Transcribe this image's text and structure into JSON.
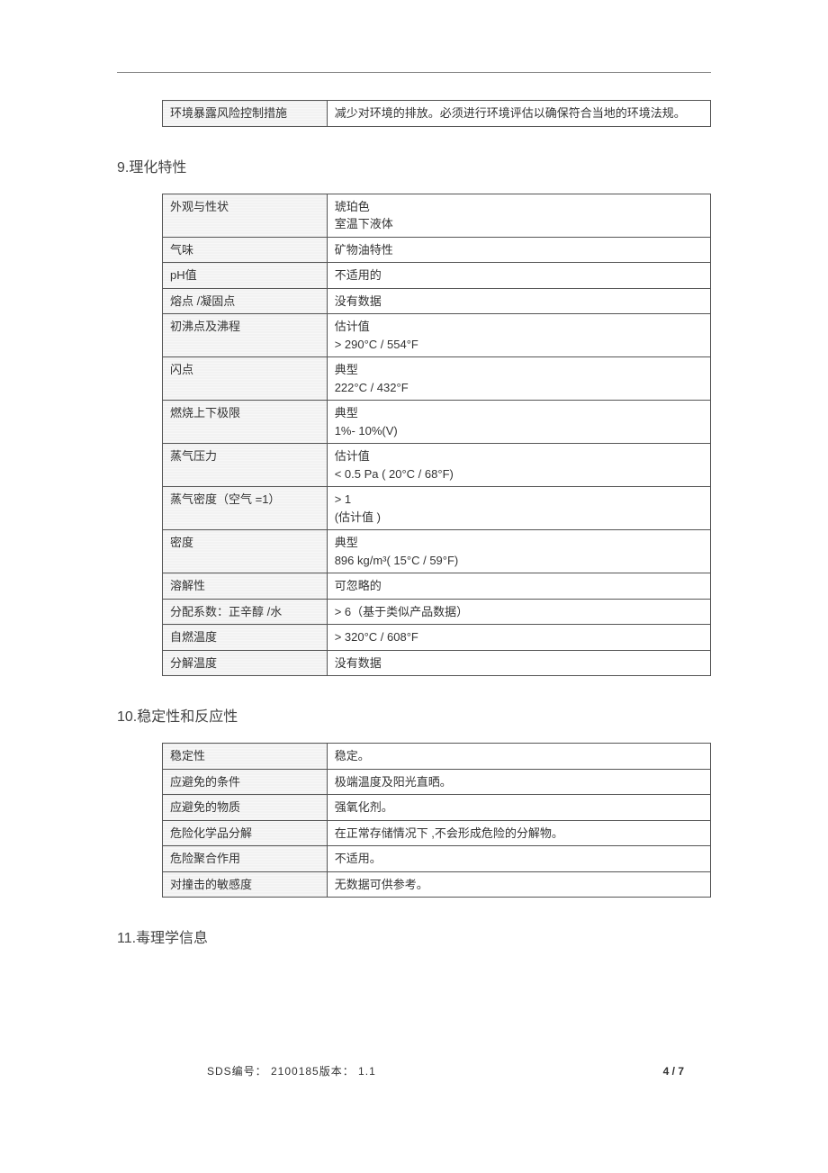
{
  "top_table": {
    "rows": [
      {
        "label": "环境暴露风险控制措施",
        "value": "减少对环境的排放。必须进行环境评估以确保符合当地的环境法规。"
      }
    ]
  },
  "section9": {
    "heading": "9.理化特性",
    "rows": [
      {
        "label": "外观与性状",
        "value_lines": [
          "琥珀色",
          "室温下液体"
        ]
      },
      {
        "label": "气味",
        "value_lines": [
          "矿物油特性"
        ]
      },
      {
        "label": "pH值",
        "value_lines": [
          "不适用的"
        ]
      },
      {
        "label": "熔点 /凝固点",
        "value_lines": [
          "没有数据"
        ]
      },
      {
        "label": "初沸点及沸程",
        "value_lines": [
          "估计值",
          ">  290°C    /    554°F"
        ]
      },
      {
        "label": "闪点",
        "value_lines": [
          "典型",
          "222°C    /    432°F"
        ]
      },
      {
        "label": "燃烧上下极限",
        "value_lines": [
          "典型",
          "1%- 10%(V)"
        ]
      },
      {
        "label": "蒸气压力",
        "value_lines": [
          "估计值",
          "<  0.5 Pa (     20°C    /   68°F)"
        ]
      },
      {
        "label": "蒸气密度（空气   =1）",
        "value_lines": [
          ">  1",
          "(估计值   )"
        ]
      },
      {
        "label": "密度",
        "value_lines": [
          "典型",
          "896 kg/m³(     15°C    /   59°F)"
        ],
        "has_super": true
      },
      {
        "label": "溶解性",
        "value_lines": [
          "可忽略的"
        ]
      },
      {
        "label": "分配系数：正辛醇    /水",
        "value_lines": [
          ">  6（基于类似产品数据）"
        ]
      },
      {
        "label": "自燃温度",
        "value_lines": [
          ">  320°C    /    608°F"
        ]
      },
      {
        "label": "分解温度",
        "value_lines": [
          "没有数据"
        ]
      }
    ]
  },
  "section10": {
    "heading": "10.稳定性和反应性",
    "rows": [
      {
        "label": "稳定性",
        "value": "稳定。"
      },
      {
        "label": "应避免的条件",
        "value": "极端温度及阳光直晒。"
      },
      {
        "label": "应避免的物质",
        "value": "强氧化剂。"
      },
      {
        "label": "危险化学品分解",
        "value": "在正常存储情况下   ,不会形成危险的分解物。"
      },
      {
        "label": "危险聚合作用",
        "value": "不适用。"
      },
      {
        "label": "对撞击的敏感度",
        "value": "无数据可供参考。"
      }
    ]
  },
  "section11": {
    "heading": "11.毒理学信息"
  },
  "footer": {
    "left": "SDS编号：  2100185版本：      1.1",
    "right": "4 / 7"
  }
}
